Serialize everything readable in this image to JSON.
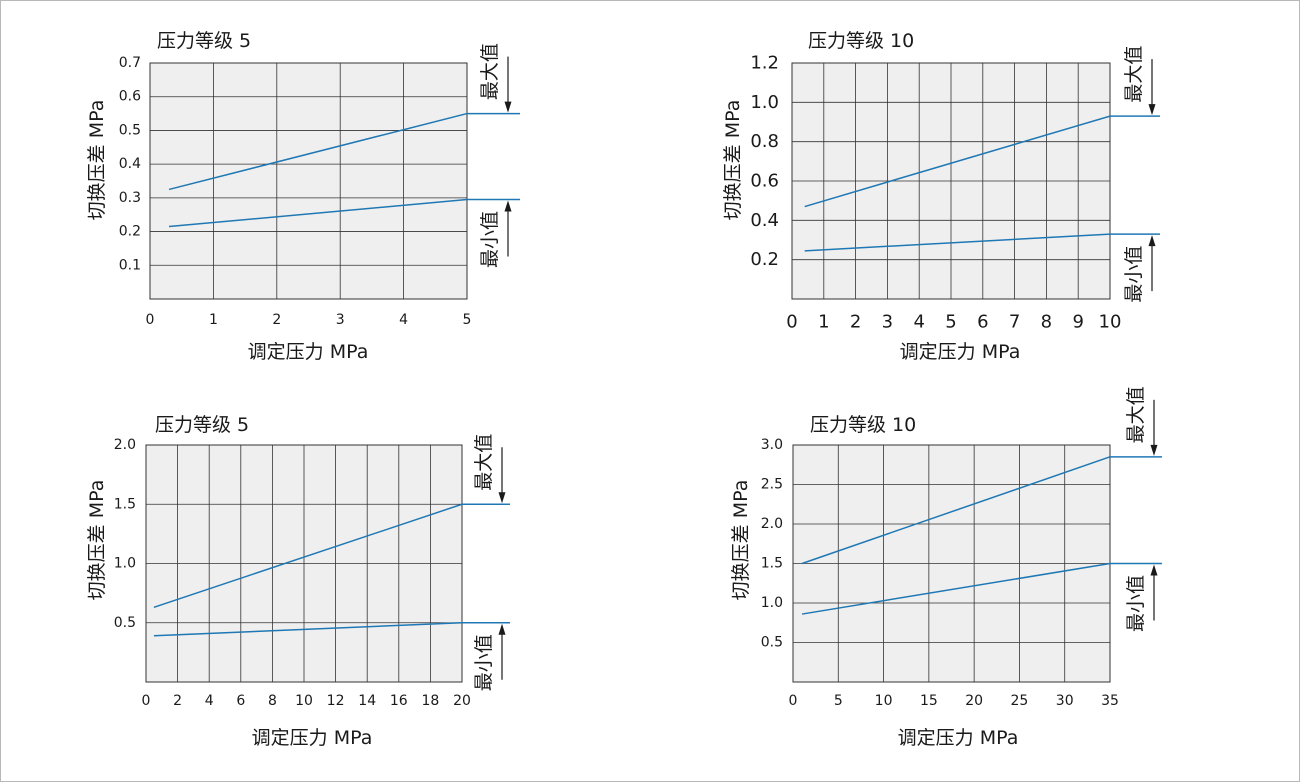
{
  "chart_data": [
    {
      "type": "line",
      "title": "压力等级 5",
      "xlabel": "调定压力 MPa",
      "ylabel": "切换压差 MPa",
      "xlim": [
        0,
        5
      ],
      "ylim": [
        0,
        0.7
      ],
      "x_ticks": [
        0,
        1,
        2,
        3,
        4,
        5
      ],
      "x_tick_labels": [
        "0",
        "1",
        "2",
        "3",
        "4",
        "5"
      ],
      "y_ticks": [
        0.1,
        0.2,
        0.3,
        0.4,
        0.5,
        0.6,
        0.7
      ],
      "y_tick_labels": [
        "0.1",
        "0.2",
        "0.3",
        "0.4",
        "0.5",
        "0.6",
        "0.7"
      ],
      "grid": true,
      "series": [
        {
          "x": [
            0.3,
            5
          ],
          "y": [
            0.325,
            0.55
          ]
        },
        {
          "x": [
            0.3,
            5
          ],
          "y": [
            0.215,
            0.295
          ]
        }
      ],
      "annotations": {
        "max_label": "最大值",
        "min_label": "最小值"
      },
      "line_color": "#1f78b4"
    },
    {
      "type": "line",
      "title": "压力等级 10",
      "xlabel": "调定压力 MPa",
      "ylabel": "切换压差 MPa",
      "xlim": [
        0,
        10
      ],
      "ylim": [
        0,
        1.2
      ],
      "x_ticks": [
        0,
        1,
        2,
        3,
        4,
        5,
        6,
        7,
        8,
        9,
        10
      ],
      "x_tick_labels": [
        "0",
        "1",
        "2",
        "3",
        "4",
        "5",
        "6",
        "7",
        "8",
        "9",
        "10"
      ],
      "y_ticks": [
        0.2,
        0.4,
        0.6,
        0.8,
        1.0,
        1.2
      ],
      "y_tick_labels": [
        "0.2",
        "0.4",
        "0.6",
        "0.8",
        "1.0",
        "1.2"
      ],
      "grid": true,
      "series": [
        {
          "x": [
            0.4,
            10
          ],
          "y": [
            0.47,
            0.93
          ]
        },
        {
          "x": [
            0.4,
            10
          ],
          "y": [
            0.245,
            0.33
          ]
        }
      ],
      "annotations": {
        "max_label": "最大值",
        "min_label": "最小值"
      },
      "line_color": "#1f78b4"
    },
    {
      "type": "line",
      "title": "压力等级 5",
      "xlabel": "调定压力 MPa",
      "ylabel": "切换压差 MPa",
      "xlim": [
        0,
        20
      ],
      "ylim": [
        0,
        2.0
      ],
      "x_ticks": [
        0,
        2,
        4,
        6,
        8,
        10,
        12,
        14,
        16,
        18,
        20
      ],
      "x_tick_labels": [
        "0",
        "2",
        "4",
        "6",
        "8",
        "10",
        "12",
        "14",
        "16",
        "18",
        "20"
      ],
      "y_ticks": [
        0.5,
        1.0,
        1.5,
        2.0
      ],
      "y_tick_labels": [
        "0.5",
        "1.0",
        "1.5",
        "2.0"
      ],
      "grid": true,
      "series": [
        {
          "x": [
            0.5,
            20
          ],
          "y": [
            0.63,
            1.5
          ]
        },
        {
          "x": [
            0.5,
            20
          ],
          "y": [
            0.39,
            0.5
          ]
        }
      ],
      "annotations": {
        "max_label": "最大值",
        "min_label": "最小值"
      },
      "line_color": "#1f78b4"
    },
    {
      "type": "line",
      "title": "压力等级 10",
      "xlabel": "调定压力 MPa",
      "ylabel": "切换压差 MPa",
      "xlim": [
        0,
        35
      ],
      "ylim": [
        0,
        3.0
      ],
      "x_ticks": [
        0,
        5,
        10,
        15,
        20,
        25,
        30,
        35
      ],
      "x_tick_labels": [
        "0",
        "5",
        "10",
        "15",
        "20",
        "25",
        "30",
        "35"
      ],
      "y_ticks": [
        0.5,
        1.0,
        1.5,
        2.0,
        2.5,
        3.0
      ],
      "y_tick_labels": [
        "0.5",
        "1.0",
        "1.5",
        "2.0",
        "2.5",
        "3.0"
      ],
      "grid": true,
      "series": [
        {
          "x": [
            1,
            35
          ],
          "y": [
            1.5,
            2.85
          ]
        },
        {
          "x": [
            1,
            35
          ],
          "y": [
            0.86,
            1.5
          ]
        }
      ],
      "annotations": {
        "max_label": "最大值",
        "min_label": "最小值"
      },
      "line_color": "#1f78b4"
    }
  ]
}
